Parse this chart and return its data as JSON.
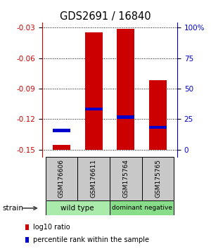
{
  "title": "GDS2691 / 16840",
  "samples": [
    "GSM176606",
    "GSM176611",
    "GSM175764",
    "GSM175765"
  ],
  "log10_values": [
    -0.145,
    -0.035,
    -0.031,
    -0.082
  ],
  "percentile_values": [
    -0.131,
    -0.11,
    -0.118,
    -0.128
  ],
  "bar_bottom": -0.15,
  "ylim_min": -0.157,
  "ylim_max": -0.025,
  "yticks_left": [
    -0.03,
    -0.06,
    -0.09,
    -0.12,
    -0.15
  ],
  "yticks_right": [
    100,
    75,
    50,
    25,
    0
  ],
  "yticks_right_pos": [
    -0.03,
    -0.06,
    -0.09,
    -0.12,
    -0.15
  ],
  "bar_color_red": "#cc0000",
  "bar_color_blue": "#0000cc",
  "left_axis_color": "#cc0000",
  "right_axis_color": "#0000cc",
  "bar_width": 0.55,
  "blue_bar_height": 0.003
}
